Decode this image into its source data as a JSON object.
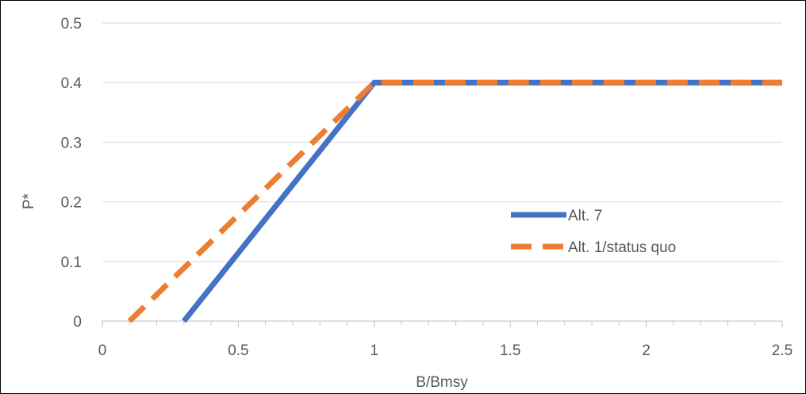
{
  "chart_data": {
    "type": "line",
    "xlabel": "B/Bmsy",
    "ylabel": "P*",
    "xlim": [
      0,
      2.5
    ],
    "ylim": [
      0,
      0.5
    ],
    "x_ticks": [
      "0",
      "0.5",
      "1",
      "1.5",
      "2",
      "2.5"
    ],
    "y_ticks": [
      "0",
      "0.1",
      "0.2",
      "0.3",
      "0.4",
      "0.5"
    ],
    "grid": "horizontal",
    "legend_position": "right",
    "series": [
      {
        "name": "Alt. 7",
        "color": "#4472C4",
        "style": "solid",
        "x": [
          0.3,
          1.0,
          2.5
        ],
        "y": [
          0.0,
          0.4,
          0.4
        ]
      },
      {
        "name": "Alt. 1/status quo",
        "color": "#ED7D31",
        "style": "dashed",
        "x": [
          0.1,
          1.0,
          2.5
        ],
        "y": [
          0.0,
          0.4,
          0.4
        ]
      }
    ]
  }
}
